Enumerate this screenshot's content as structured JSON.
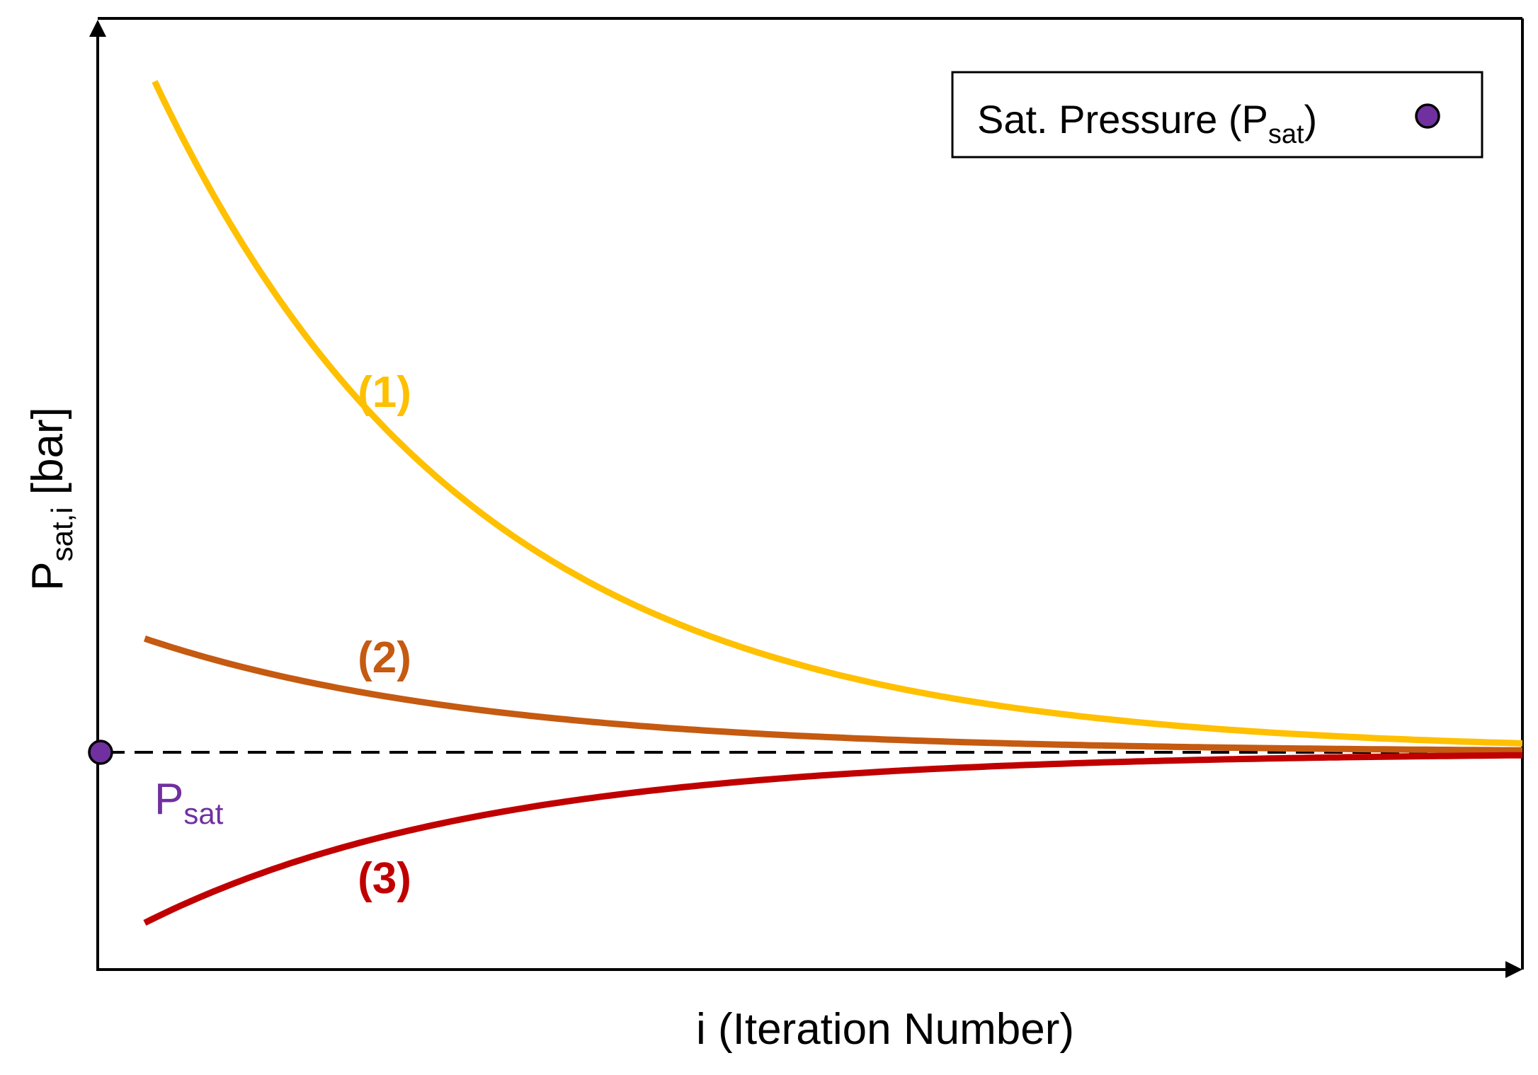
{
  "chart_data": {
    "type": "line",
    "title": "",
    "xlabel": "i (Iteration Number)",
    "ylabel": {
      "main": "P",
      "sub": "sat,i",
      "unit": " [bar]"
    },
    "x_ticks_shown": false,
    "y_ticks_shown": false,
    "grid": false,
    "legend": {
      "placement": "top-right",
      "entries": [
        {
          "label_main": "Sat. Pressure (P",
          "label_sub": "sat",
          "label_close": ")",
          "marker": "circle",
          "color": "#7030a0"
        }
      ]
    },
    "reference": {
      "label_main": "P",
      "label_sub": "sat",
      "value": 0,
      "style": "dashed",
      "color": "#000000",
      "marker_color": "#7030a0"
    },
    "ylim": [
      -1.0,
      3.2
    ],
    "xlim": [
      0,
      10
    ],
    "series": [
      {
        "label": "(1)",
        "color": "#ffc000",
        "start_x": 0.4,
        "start_y": 2.95,
        "decay": 0.45
      },
      {
        "label": "(2)",
        "color": "#c55a11",
        "start_x": 0.33,
        "start_y": 0.5,
        "decay": 0.42
      },
      {
        "label": "(3)",
        "color": "#c00000",
        "start_x": 0.33,
        "start_y": -0.75,
        "decay": 0.42
      }
    ]
  }
}
